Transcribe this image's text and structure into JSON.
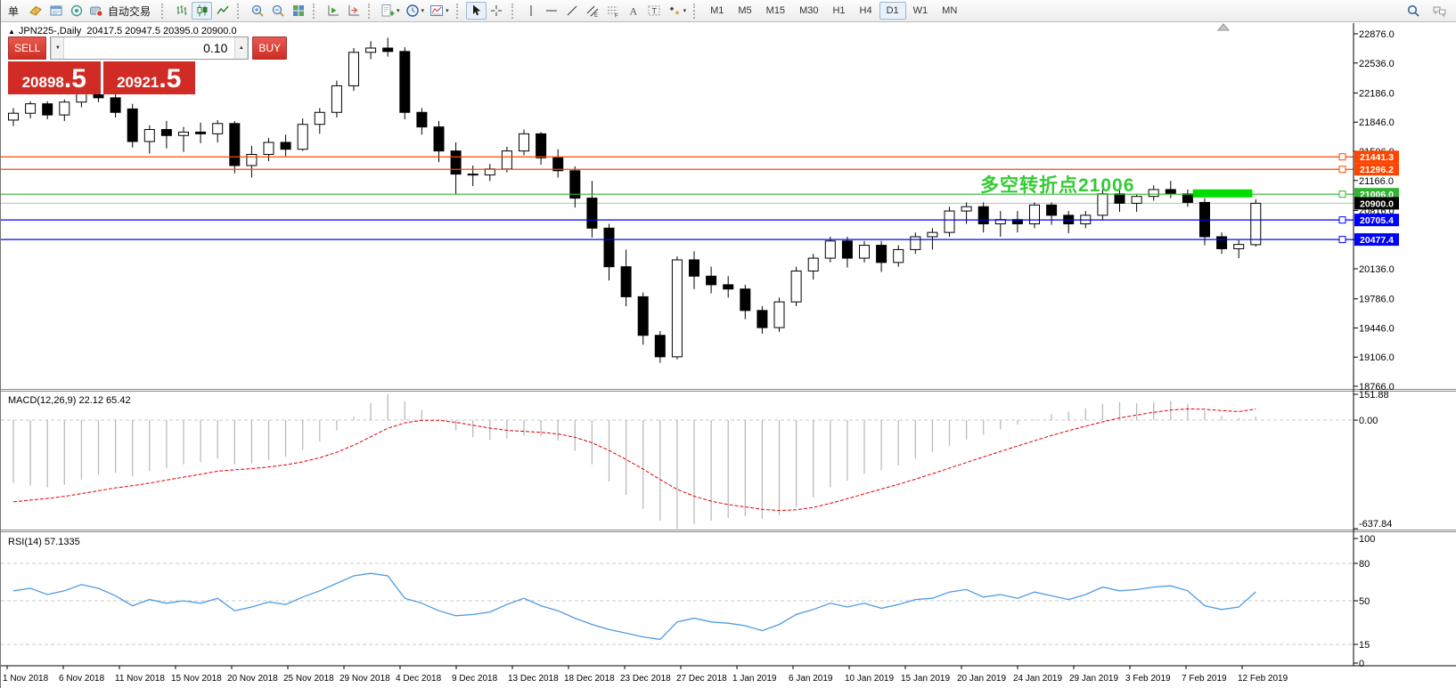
{
  "toolbar": {
    "groups": [
      {
        "items": [
          {
            "name": "new-order-button",
            "label": "单"
          },
          {
            "name": "chart-widget-button",
            "icon": "book-icon"
          },
          {
            "name": "data-window-button",
            "icon": "window-icon"
          },
          {
            "name": "sound-button",
            "icon": "speaker-icon"
          },
          {
            "name": "autotrading-button",
            "icon": "autotrading-icon",
            "label": "自动交易"
          }
        ]
      },
      {
        "items": [
          {
            "name": "bar-chart-button",
            "icon": "bar-chart-icon"
          },
          {
            "name": "candlestick-button",
            "icon": "candlestick-icon",
            "pressed": true
          },
          {
            "name": "line-chart-button",
            "icon": "line-chart-icon"
          }
        ]
      },
      {
        "items": [
          {
            "name": "zoom-in-button",
            "icon": "zoom-in-icon"
          },
          {
            "name": "zoom-out-button",
            "icon": "zoom-out-icon"
          },
          {
            "name": "tile-windows-button",
            "icon": "tile-windows-icon"
          }
        ]
      },
      {
        "items": [
          {
            "name": "auto-scroll-button",
            "icon": "auto-scroll-icon"
          },
          {
            "name": "chart-shift-button",
            "icon": "chart-shift-icon"
          }
        ]
      },
      {
        "items": [
          {
            "name": "new-chart-button",
            "icon": "new-chart-icon",
            "caret": true
          },
          {
            "name": "period-menu-button",
            "icon": "clock-icon",
            "caret": true
          },
          {
            "name": "template-menu-button",
            "icon": "template-icon",
            "caret": true
          }
        ]
      },
      {
        "items": [
          {
            "name": "cursor-button",
            "icon": "cursor-icon",
            "pressed": true
          },
          {
            "name": "crosshair-button",
            "icon": "crosshair-icon"
          }
        ]
      },
      {
        "items": [
          {
            "name": "vertical-line-button",
            "icon": "vertical-line-icon"
          },
          {
            "name": "horizontal-line-button",
            "icon": "horizontal-line-icon"
          },
          {
            "name": "trendline-button",
            "icon": "trendline-icon"
          },
          {
            "name": "channel-button",
            "icon": "channel-icon"
          },
          {
            "name": "fibonacci-button",
            "icon": "fibonacci-icon"
          },
          {
            "name": "text-button",
            "icon": "text-icon"
          },
          {
            "name": "text-label-button",
            "icon": "text-label-icon"
          },
          {
            "name": "arrows-button",
            "icon": "arrows-icon",
            "caret": true
          }
        ]
      },
      {
        "items": [
          {
            "name": "timeframe-m1-button",
            "tf": "M1"
          },
          {
            "name": "timeframe-m5-button",
            "tf": "M5"
          },
          {
            "name": "timeframe-m15-button",
            "tf": "M15"
          },
          {
            "name": "timeframe-m30-button",
            "tf": "M30"
          },
          {
            "name": "timeframe-h1-button",
            "tf": "H1"
          },
          {
            "name": "timeframe-h4-button",
            "tf": "H4"
          },
          {
            "name": "timeframe-d1-button",
            "tf": "D1",
            "pressed": true
          },
          {
            "name": "timeframe-w1-button",
            "tf": "W1"
          },
          {
            "name": "timeframe-mn-button",
            "tf": "MN"
          }
        ]
      }
    ],
    "right_items": [
      {
        "name": "search-button",
        "icon": "search-icon"
      },
      {
        "name": "chat-button",
        "icon": "chat-icon"
      }
    ]
  },
  "chart_header": {
    "collapse_icon": "▲",
    "symbol_period": "JPN225-,Daily",
    "ohlc_text": "20417.5 20947.5 20395.0 20900.0"
  },
  "trade_panel": {
    "sell_label": "SELL",
    "buy_label": "BUY",
    "volume": "0.10",
    "spin_down": "▼",
    "spin_up": "▲",
    "sell_price": "20898",
    "sell_price_frac": ".5",
    "buy_price": "20921",
    "buy_price_frac": ".5"
  },
  "indicator_labels": {
    "macd": "MACD(12,26,9) 22.12 65.42",
    "rsi": "RSI(14) 57.1335"
  },
  "annotation": {
    "text": "多空转折点21006",
    "color": "#33CC33"
  },
  "chart_data": {
    "type": "candlestick",
    "symbol": "JPN225-",
    "period": "Daily",
    "last_ohlc": {
      "open": 20417.5,
      "high": 20947.5,
      "low": 20395.0,
      "close": 20900.0
    },
    "sell_price": 20898.5,
    "buy_price": 20921.5,
    "colors": {
      "up": "#FFFFFF",
      "down": "#000000",
      "outline": "#000000",
      "grid": "#C8C8C8",
      "current_price_line": "#BBBBBB"
    },
    "y_axis": {
      "labels": [
        "22876.0",
        "22536.0",
        "22186.0",
        "21846.0",
        "21506.0",
        "21166.0",
        "20816.0",
        "20476.0",
        "20136.0",
        "19786.0",
        "19446.0",
        "19106.0",
        "18766.0"
      ],
      "values": [
        22876,
        22536,
        22186,
        21846,
        21506,
        21166,
        20816,
        20476,
        20136,
        19786,
        19446,
        19106,
        18766
      ]
    },
    "x_axis_labels": [
      "1 Nov 2018",
      "6 Nov 2018",
      "11 Nov 2018",
      "15 Nov 2018",
      "20 Nov 2018",
      "25 Nov 2018",
      "29 Nov 2018",
      "4 Dec 2018",
      "9 Dec 2018",
      "13 Dec 2018",
      "18 Dec 2018",
      "23 Dec 2018",
      "27 Dec 2018",
      "1 Jan 2019",
      "6 Jan 2019",
      "10 Jan 2019",
      "15 Jan 2019",
      "20 Jan 2019",
      "24 Jan 2019",
      "29 Jan 2019",
      "3 Feb 2019",
      "7 Feb 2019",
      "12 Feb 2019"
    ],
    "dates": [
      "2018.11.01",
      "2018.11.02",
      "2018.11.05",
      "2018.11.06",
      "2018.11.07",
      "2018.11.08",
      "2018.11.09",
      "2018.11.12",
      "2018.11.13",
      "2018.11.14",
      "2018.11.15",
      "2018.11.16",
      "2018.11.19",
      "2018.11.20",
      "2018.11.21",
      "2018.11.22",
      "2018.11.23",
      "2018.11.26",
      "2018.11.27",
      "2018.11.28",
      "2018.11.29",
      "2018.11.30",
      "2018.12.03",
      "2018.12.04",
      "2018.12.05",
      "2018.12.06",
      "2018.12.07",
      "2018.12.10",
      "2018.12.11",
      "2018.12.12",
      "2018.12.13",
      "2018.12.14",
      "2018.12.17",
      "2018.12.18",
      "2018.12.19",
      "2018.12.20",
      "2018.12.21",
      "2018.12.24",
      "2018.12.25",
      "2018.12.26",
      "2018.12.27",
      "2018.12.28",
      "2018.12.31",
      "2019.01.02",
      "2019.01.03",
      "2019.01.04",
      "2019.01.07",
      "2019.01.08",
      "2019.01.09",
      "2019.01.10",
      "2019.01.11",
      "2019.01.14",
      "2019.01.15",
      "2019.01.16",
      "2019.01.17",
      "2019.01.18",
      "2019.01.21",
      "2019.01.22",
      "2019.01.23",
      "2019.01.24",
      "2019.01.25",
      "2019.01.28",
      "2019.01.29",
      "2019.01.30",
      "2019.01.31",
      "2019.02.01",
      "2019.02.04",
      "2019.02.05",
      "2019.02.06",
      "2019.02.07",
      "2019.02.08",
      "2019.02.11",
      "2019.02.12",
      "2019.02.13"
    ],
    "ohlc": [
      [
        21870,
        22010,
        21800,
        21950
      ],
      [
        21950,
        22090,
        21890,
        22060
      ],
      [
        22060,
        22090,
        21880,
        21930
      ],
      [
        21930,
        22110,
        21860,
        22080
      ],
      [
        22080,
        22280,
        22020,
        22240
      ],
      [
        22240,
        22330,
        22080,
        22130
      ],
      [
        22130,
        22170,
        21900,
        21960
      ],
      [
        22000,
        22060,
        21550,
        21620
      ],
      [
        21620,
        21810,
        21480,
        21760
      ],
      [
        21760,
        21860,
        21540,
        21690
      ],
      [
        21690,
        21790,
        21500,
        21730
      ],
      [
        21730,
        21840,
        21600,
        21710
      ],
      [
        21710,
        21870,
        21610,
        21830
      ],
      [
        21830,
        21860,
        21250,
        21340
      ],
      [
        21340,
        21570,
        21200,
        21470
      ],
      [
        21470,
        21660,
        21390,
        21610
      ],
      [
        21610,
        21700,
        21450,
        21530
      ],
      [
        21530,
        21890,
        21510,
        21820
      ],
      [
        21820,
        22010,
        21710,
        21960
      ],
      [
        21960,
        22330,
        21900,
        22270
      ],
      [
        22270,
        22710,
        22210,
        22660
      ],
      [
        22660,
        22790,
        22580,
        22710
      ],
      [
        22710,
        22830,
        22610,
        22670
      ],
      [
        22670,
        22720,
        21880,
        21960
      ],
      [
        21960,
        22010,
        21700,
        21790
      ],
      [
        21790,
        21860,
        21380,
        21510
      ],
      [
        21510,
        21610,
        21010,
        21240
      ],
      [
        21240,
        21340,
        21100,
        21230
      ],
      [
        21230,
        21360,
        21160,
        21300
      ],
      [
        21300,
        21560,
        21260,
        21510
      ],
      [
        21510,
        21760,
        21460,
        21710
      ],
      [
        21710,
        21730,
        21350,
        21430
      ],
      [
        21430,
        21530,
        21200,
        21280
      ],
      [
        21280,
        21330,
        20850,
        20960
      ],
      [
        20960,
        21160,
        20500,
        20610
      ],
      [
        20610,
        20660,
        20000,
        20160
      ],
      [
        20160,
        20360,
        19700,
        19810
      ],
      [
        19810,
        19860,
        19250,
        19360
      ],
      [
        19360,
        19410,
        19040,
        19110
      ],
      [
        19110,
        20280,
        19080,
        20240
      ],
      [
        20240,
        20340,
        19900,
        20050
      ],
      [
        20050,
        20160,
        19850,
        19950
      ],
      [
        19950,
        20050,
        19800,
        19900
      ],
      [
        19900,
        19950,
        19550,
        19650
      ],
      [
        19650,
        19700,
        19380,
        19450
      ],
      [
        19450,
        19800,
        19400,
        19750
      ],
      [
        19750,
        20160,
        19700,
        20110
      ],
      [
        20110,
        20310,
        20010,
        20260
      ],
      [
        20260,
        20510,
        20210,
        20460
      ],
      [
        20460,
        20510,
        20150,
        20260
      ],
      [
        20260,
        20460,
        20210,
        20410
      ],
      [
        20410,
        20460,
        20100,
        20210
      ],
      [
        20210,
        20410,
        20160,
        20360
      ],
      [
        20360,
        20560,
        20310,
        20510
      ],
      [
        20510,
        20610,
        20360,
        20560
      ],
      [
        20560,
        20860,
        20510,
        20810
      ],
      [
        20810,
        20910,
        20660,
        20860
      ],
      [
        20860,
        20910,
        20560,
        20660
      ],
      [
        20660,
        20810,
        20510,
        20710
      ],
      [
        20710,
        20810,
        20560,
        20660
      ],
      [
        20660,
        20910,
        20610,
        20880
      ],
      [
        20880,
        20910,
        20650,
        20760
      ],
      [
        20760,
        20810,
        20550,
        20660
      ],
      [
        20660,
        20810,
        20610,
        20760
      ],
      [
        20760,
        21060,
        20710,
        21010
      ],
      [
        21010,
        21060,
        20800,
        20900
      ],
      [
        20900,
        21000,
        20800,
        20980
      ],
      [
        20980,
        21110,
        20930,
        21060
      ],
      [
        21060,
        21160,
        20960,
        21010
      ],
      [
        21010,
        21060,
        20860,
        20910
      ],
      [
        20910,
        20960,
        20410,
        20510
      ],
      [
        20510,
        20560,
        20310,
        20370
      ],
      [
        20370,
        20470,
        20260,
        20420
      ],
      [
        20417.5,
        20947.5,
        20395.0,
        20900.0
      ]
    ],
    "hlines": [
      {
        "price": 21441.3,
        "label": "21441.3",
        "color": "#FF4500"
      },
      {
        "price": 21296.2,
        "label": "21296.2",
        "color": "#FF4500"
      },
      {
        "price": 21006.0,
        "label": "21006.0",
        "color": "#33B333"
      },
      {
        "price": 20705.4,
        "label": "20705.4",
        "color": "#0000FF"
      },
      {
        "price": 20477.4,
        "label": "20477.4",
        "color": "#0000FF"
      }
    ],
    "current_price": {
      "value": 20900.0,
      "label": "20900.0",
      "label_bg": "#000000"
    },
    "highlight_rect": {
      "color": "#00DD00",
      "price_top": 21062,
      "price_bottom": 20968,
      "bar_start": 69.3,
      "bar_end": 72.8
    },
    "indicators": {
      "macd": {
        "params": "12,26,9",
        "value": 22.12,
        "signal_value": 65.42,
        "axis_labels": [
          "151.88",
          "0.00",
          "-637.84"
        ],
        "axis_values": [
          151.88,
          0,
          -637.84
        ],
        "colors": {
          "histogram": "#BBBBBB",
          "signal": "#E00000"
        },
        "histogram": [
          -370,
          -385,
          -395,
          -380,
          -350,
          -320,
          -310,
          -330,
          -300,
          -280,
          -260,
          -245,
          -225,
          -260,
          -255,
          -235,
          -215,
          -175,
          -125,
          -60,
          20,
          100,
          151.88,
          110,
          60,
          0,
          -60,
          -100,
          -115,
          -110,
          -90,
          -95,
          -120,
          -180,
          -260,
          -360,
          -440,
          -520,
          -590,
          -637.84,
          -610,
          -590,
          -575,
          -565,
          -580,
          -560,
          -510,
          -455,
          -395,
          -355,
          -315,
          -295,
          -265,
          -225,
          -190,
          -150,
          -115,
          -85,
          -55,
          -25,
          5,
          35,
          50,
          70,
          95,
          105,
          100,
          108,
          112,
          95,
          55,
          25,
          12,
          22.12
        ],
        "signal_series": [
          -480,
          -470,
          -460,
          -448,
          -432,
          -415,
          -398,
          -385,
          -370,
          -352,
          -335,
          -318,
          -300,
          -292,
          -285,
          -275,
          -263,
          -245,
          -221,
          -189,
          -147,
          -98,
          -48,
          -16,
          -1,
          -1,
          -13,
          -30,
          -47,
          -60,
          -66,
          -72,
          -81,
          -101,
          -133,
          -178,
          -231,
          -288,
          -349,
          -407,
          -447,
          -476,
          -496,
          -510,
          -524,
          -531,
          -527,
          -513,
          -489,
          -462,
          -433,
          -405,
          -377,
          -347,
          -315,
          -282,
          -249,
          -216,
          -184,
          -152,
          -121,
          -90,
          -62,
          -36,
          -10,
          13,
          30,
          46,
          59,
          66,
          64,
          56,
          50,
          65.42
        ]
      },
      "rsi": {
        "period": 14,
        "value": 57.1335,
        "axis_labels": [
          "100",
          "80",
          "50",
          "15",
          "0"
        ],
        "axis_values": [
          100,
          80,
          50,
          15,
          0
        ],
        "levels": [
          80,
          50,
          15
        ],
        "color": "#4D9BE6",
        "series": [
          58,
          60,
          55,
          58,
          63,
          60,
          54,
          46,
          51,
          48,
          50,
          48,
          52,
          42,
          45,
          49,
          47,
          53,
          58,
          64,
          70,
          72,
          70,
          52,
          48,
          42,
          38,
          39,
          41,
          47,
          52,
          46,
          42,
          36,
          31,
          27,
          24,
          21,
          19,
          33,
          36,
          33,
          32,
          30,
          26,
          31,
          39,
          43,
          48,
          45,
          48,
          44,
          47,
          51,
          52,
          57,
          59,
          53,
          55,
          52,
          57,
          54,
          51,
          55,
          61,
          58,
          59,
          61,
          62,
          58,
          46,
          43,
          45,
          57.13
        ]
      }
    }
  }
}
